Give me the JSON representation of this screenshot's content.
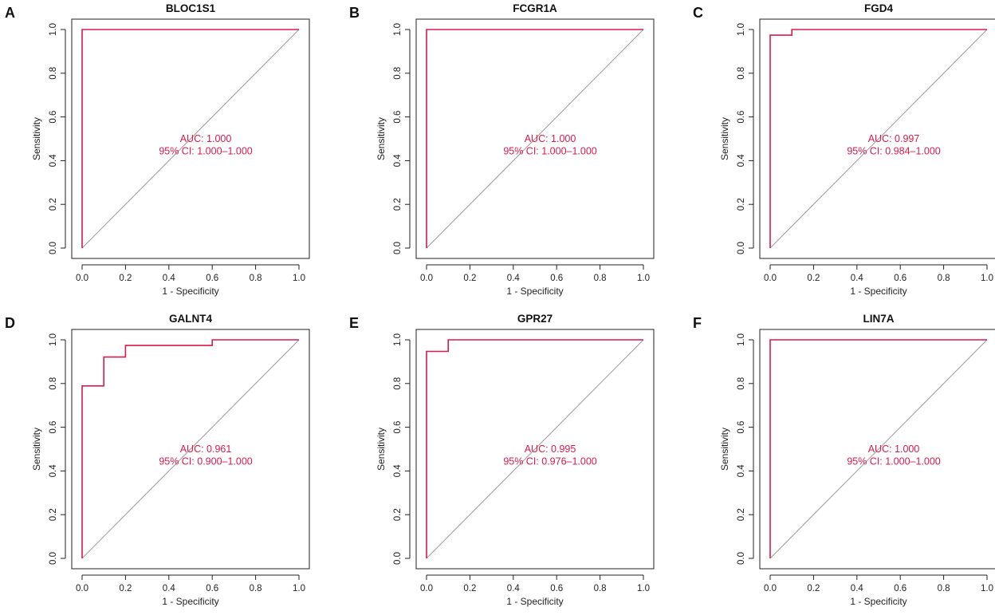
{
  "colors": {
    "roc_curve": "#d91a4a",
    "annotation": "#d91a4a",
    "diagonal": "#9a9a9a",
    "axis": "#222222"
  },
  "chart_data": [
    {
      "type": "line",
      "panel_label": "A",
      "title": "BLOC1S1",
      "xlabel": "1 - Specificity",
      "ylabel": "Sensitivity",
      "xlim": [
        0,
        1
      ],
      "ylim": [
        0,
        1
      ],
      "x_ticks": [
        "0.0",
        "0.2",
        "0.4",
        "0.6",
        "0.8",
        "1.0"
      ],
      "y_ticks": [
        "0.0",
        "0.2",
        "0.4",
        "0.6",
        "0.8",
        "1.0"
      ],
      "reference_line": {
        "x": [
          0,
          1
        ],
        "y": [
          0,
          1
        ]
      },
      "roc_points": [
        [
          0,
          0
        ],
        [
          0,
          1
        ],
        [
          1,
          1
        ]
      ],
      "auc_label": "AUC: 1.000",
      "ci_label": "95% CI: 1.000–1.000"
    },
    {
      "type": "line",
      "panel_label": "B",
      "title": "FCGR1A",
      "xlabel": "1 - Specificity",
      "ylabel": "Sensitivity",
      "xlim": [
        0,
        1
      ],
      "ylim": [
        0,
        1
      ],
      "x_ticks": [
        "0.0",
        "0.2",
        "0.4",
        "0.6",
        "0.8",
        "1.0"
      ],
      "y_ticks": [
        "0.0",
        "0.2",
        "0.4",
        "0.6",
        "0.8",
        "1.0"
      ],
      "reference_line": {
        "x": [
          0,
          1
        ],
        "y": [
          0,
          1
        ]
      },
      "roc_points": [
        [
          0,
          0
        ],
        [
          0,
          1
        ],
        [
          1,
          1
        ]
      ],
      "auc_label": "AUC: 1.000",
      "ci_label": "95% CI: 1.000–1.000"
    },
    {
      "type": "line",
      "panel_label": "C",
      "title": "FGD4",
      "xlabel": "1 - Specificity",
      "ylabel": "Sensitivity",
      "xlim": [
        0,
        1
      ],
      "ylim": [
        0,
        1
      ],
      "x_ticks": [
        "0.0",
        "0.2",
        "0.4",
        "0.6",
        "0.8",
        "1.0"
      ],
      "y_ticks": [
        "0.0",
        "0.2",
        "0.4",
        "0.6",
        "0.8",
        "1.0"
      ],
      "reference_line": {
        "x": [
          0,
          1
        ],
        "y": [
          0,
          1
        ]
      },
      "roc_points": [
        [
          0,
          0
        ],
        [
          0,
          0.974
        ],
        [
          0.1,
          0.974
        ],
        [
          0.1,
          1
        ],
        [
          1,
          1
        ]
      ],
      "auc_label": "AUC: 0.997",
      "ci_label": "95% CI: 0.984–1.000"
    },
    {
      "type": "line",
      "panel_label": "D",
      "title": "GALNT4",
      "xlabel": "1 - Specificity",
      "ylabel": "Sensitivity",
      "xlim": [
        0,
        1
      ],
      "ylim": [
        0,
        1
      ],
      "x_ticks": [
        "0.0",
        "0.2",
        "0.4",
        "0.6",
        "0.8",
        "1.0"
      ],
      "y_ticks": [
        "0.0",
        "0.2",
        "0.4",
        "0.6",
        "0.8",
        "1.0"
      ],
      "reference_line": {
        "x": [
          0,
          1
        ],
        "y": [
          0,
          1
        ]
      },
      "roc_points": [
        [
          0,
          0
        ],
        [
          0,
          0.789
        ],
        [
          0.1,
          0.789
        ],
        [
          0.1,
          0.921
        ],
        [
          0.2,
          0.921
        ],
        [
          0.2,
          0.974
        ],
        [
          0.6,
          0.974
        ],
        [
          0.6,
          1
        ],
        [
          1,
          1
        ]
      ],
      "auc_label": "AUC: 0.961",
      "ci_label": "95% CI: 0.900–1.000"
    },
    {
      "type": "line",
      "panel_label": "E",
      "title": "GPR27",
      "xlabel": "1 - Specificity",
      "ylabel": "Sensitivity",
      "xlim": [
        0,
        1
      ],
      "ylim": [
        0,
        1
      ],
      "x_ticks": [
        "0.0",
        "0.2",
        "0.4",
        "0.6",
        "0.8",
        "1.0"
      ],
      "y_ticks": [
        "0.0",
        "0.2",
        "0.4",
        "0.6",
        "0.8",
        "1.0"
      ],
      "reference_line": {
        "x": [
          0,
          1
        ],
        "y": [
          0,
          1
        ]
      },
      "roc_points": [
        [
          0,
          0
        ],
        [
          0,
          0.947
        ],
        [
          0.1,
          0.947
        ],
        [
          0.1,
          1
        ],
        [
          1,
          1
        ]
      ],
      "auc_label": "AUC: 0.995",
      "ci_label": "95% CI: 0.976–1.000"
    },
    {
      "type": "line",
      "panel_label": "F",
      "title": "LIN7A",
      "xlabel": "1 - Specificity",
      "ylabel": "Sensitivity",
      "xlim": [
        0,
        1
      ],
      "ylim": [
        0,
        1
      ],
      "x_ticks": [
        "0.0",
        "0.2",
        "0.4",
        "0.6",
        "0.8",
        "1.0"
      ],
      "y_ticks": [
        "0.0",
        "0.2",
        "0.4",
        "0.6",
        "0.8",
        "1.0"
      ],
      "reference_line": {
        "x": [
          0,
          1
        ],
        "y": [
          0,
          1
        ]
      },
      "roc_points": [
        [
          0,
          0
        ],
        [
          0,
          1
        ],
        [
          1,
          1
        ]
      ],
      "auc_label": "AUC: 1.000",
      "ci_label": "95% CI: 1.000–1.000"
    }
  ]
}
